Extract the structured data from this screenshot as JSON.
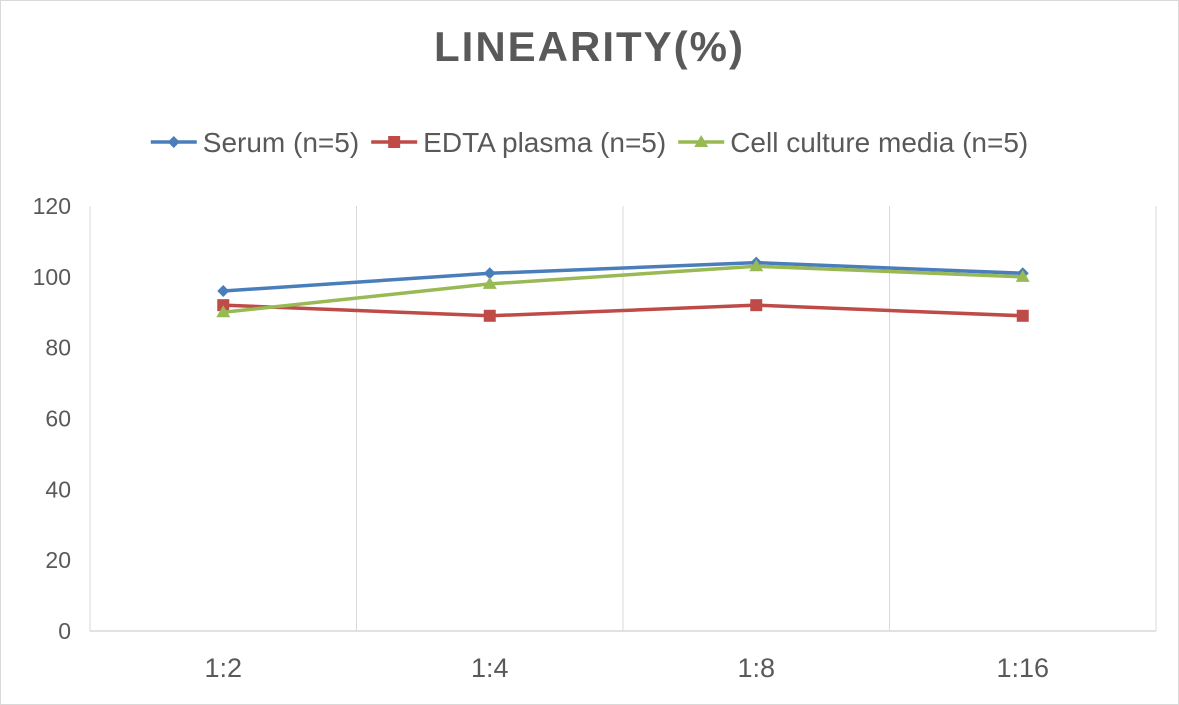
{
  "chart_data": {
    "type": "line",
    "title": "LINEARITY(%)",
    "categories": [
      "1:2",
      "1:4",
      "1:8",
      "1:16"
    ],
    "series": [
      {
        "name": "Serum (n=5)",
        "values": [
          96,
          101,
          104,
          101
        ],
        "color": "#4a7ebb",
        "marker": "diamond"
      },
      {
        "name": "EDTA plasma (n=5)",
        "values": [
          92,
          89,
          92,
          89
        ],
        "color": "#be4b48",
        "marker": "square"
      },
      {
        "name": "Cell culture media (n=5)",
        "values": [
          90,
          98,
          103,
          100
        ],
        "color": "#98b954",
        "marker": "triangle"
      }
    ],
    "ylim": [
      0,
      120
    ],
    "yticks": [
      0,
      20,
      40,
      60,
      80,
      100,
      120
    ],
    "xlabel": "",
    "ylabel": "",
    "grid": "vertical",
    "legend_position": "top"
  }
}
